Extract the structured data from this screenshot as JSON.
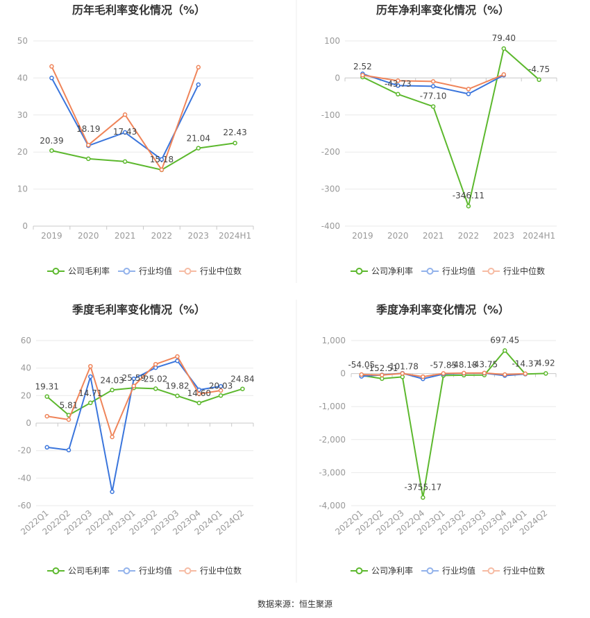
{
  "footer": {
    "source": "数据来源：恒生聚源"
  },
  "chart_data": [
    {
      "type": "line",
      "title": "历年毛利率变化情况（%）",
      "categories": [
        "2019",
        "2020",
        "2021",
        "2022",
        "2023",
        "2024H1"
      ],
      "ylim": [
        0,
        50
      ],
      "yticks": [
        50,
        40,
        30,
        20,
        10,
        0
      ],
      "ytick_labels": [
        "50",
        "40",
        "30",
        "20",
        "10",
        "0"
      ],
      "series": [
        {
          "name": "公司毛利率",
          "color": "#5cb82d",
          "values": [
            20.39,
            18.19,
            17.43,
            15.18,
            21.04,
            22.43
          ],
          "labels": [
            "20.39",
            "18.19",
            "17.43",
            "15.18",
            "21.04",
            "22.43"
          ]
        },
        {
          "name": "行业均值",
          "color": "#3a75dc",
          "values": [
            40.0,
            21.7,
            25.3,
            18.0,
            38.2,
            null
          ]
        },
        {
          "name": "行业中位数",
          "color": "#ef8459",
          "values": [
            43.1,
            21.9,
            30.1,
            15.2,
            42.9,
            null
          ]
        }
      ]
    },
    {
      "type": "line",
      "title": "历年净利率变化情况（%）",
      "categories": [
        "2019",
        "2020",
        "2021",
        "2022",
        "2023",
        "2024H1"
      ],
      "ylim": [
        -400,
        100
      ],
      "yticks": [
        100,
        0,
        -100,
        -200,
        -300,
        -400
      ],
      "ytick_labels": [
        "100",
        "0",
        "-100",
        "-200",
        "-300",
        "-400"
      ],
      "series": [
        {
          "name": "公司净利率",
          "color": "#5cb82d",
          "values": [
            2.52,
            -43.73,
            -77.1,
            -346.11,
            79.4,
            -4.75
          ],
          "labels": [
            "2.52",
            "-43.73",
            "-77.10",
            "-346.11",
            "79.40",
            "-4.75"
          ]
        },
        {
          "name": "行业均值",
          "color": "#3a75dc",
          "values": [
            11.2,
            -20.6,
            -22.5,
            -43.0,
            7.5,
            null
          ]
        },
        {
          "name": "行业中位数",
          "color": "#ef8459",
          "values": [
            7.5,
            -7.5,
            -9.4,
            -30.0,
            9.4,
            null
          ]
        }
      ]
    },
    {
      "type": "line",
      "title": "季度毛利率变化情况（%）",
      "categories": [
        "2022Q1",
        "2022Q2",
        "2022Q3",
        "2022Q4",
        "2023Q1",
        "2023Q2",
        "2023Q3",
        "2023Q4",
        "2024Q1",
        "2024Q2"
      ],
      "ylim": [
        -60,
        60
      ],
      "yticks": [
        60,
        40,
        20,
        0,
        -20,
        -40,
        -60
      ],
      "ytick_labels": [
        "60",
        "40",
        "20",
        "0",
        "-20",
        "-40",
        "-60"
      ],
      "series": [
        {
          "name": "公司毛利率",
          "color": "#5cb82d",
          "values": [
            19.31,
            5.81,
            14.71,
            24.03,
            25.59,
            25.02,
            19.82,
            14.6,
            20.03,
            24.84
          ],
          "labels": [
            "19.31",
            "5.81",
            "14.71",
            "24.03",
            "25.59",
            "25.02",
            "19.82",
            "14.60",
            "20.03",
            "24.84"
          ]
        },
        {
          "name": "行业均值",
          "color": "#3a75dc",
          "values": [
            -17.6,
            -19.6,
            33.8,
            -49.9,
            32.2,
            40.3,
            45.3,
            24.2,
            26.7,
            null
          ]
        },
        {
          "name": "行业中位数",
          "color": "#ef8459",
          "values": [
            5.0,
            2.5,
            41.3,
            -10.1,
            27.0,
            42.8,
            48.4,
            21.2,
            23.7,
            null
          ]
        }
      ]
    },
    {
      "type": "line",
      "title": "季度净利率变化情况（%）",
      "categories": [
        "2022Q1",
        "2022Q2",
        "2022Q3",
        "2022Q4",
        "2023Q1",
        "2023Q2",
        "2023Q3",
        "2023Q4",
        "2024Q1",
        "2024Q2"
      ],
      "ylim": [
        -4000,
        1000
      ],
      "yticks": [
        1000,
        0,
        -1000,
        -2000,
        -3000,
        -4000
      ],
      "ytick_labels": [
        "1,000",
        "0",
        "-1,000",
        "-2,000",
        "-3,000",
        "-4,000"
      ],
      "series": [
        {
          "name": "公司净利率",
          "color": "#5cb82d",
          "values": [
            -54.05,
            -152.51,
            -101.78,
            -3755.17,
            -57.85,
            -48.18,
            -43.75,
            697.45,
            -14.37,
            4.92
          ],
          "labels": [
            "-54.05",
            "-152.51",
            "-101.78",
            "-3755.17",
            "-57.85",
            "-48.18",
            "-43.75",
            "697.45",
            "-14.37",
            "4.92"
          ]
        },
        {
          "name": "行业均值",
          "color": "#3a75dc",
          "values": [
            -85,
            -40,
            10,
            -160,
            -15,
            10,
            12,
            -60,
            -15,
            null
          ]
        },
        {
          "name": "行业中位数",
          "color": "#ef8459",
          "values": [
            -30,
            -45,
            5,
            -95,
            5,
            15,
            18,
            -30,
            -5,
            null
          ]
        }
      ]
    }
  ]
}
